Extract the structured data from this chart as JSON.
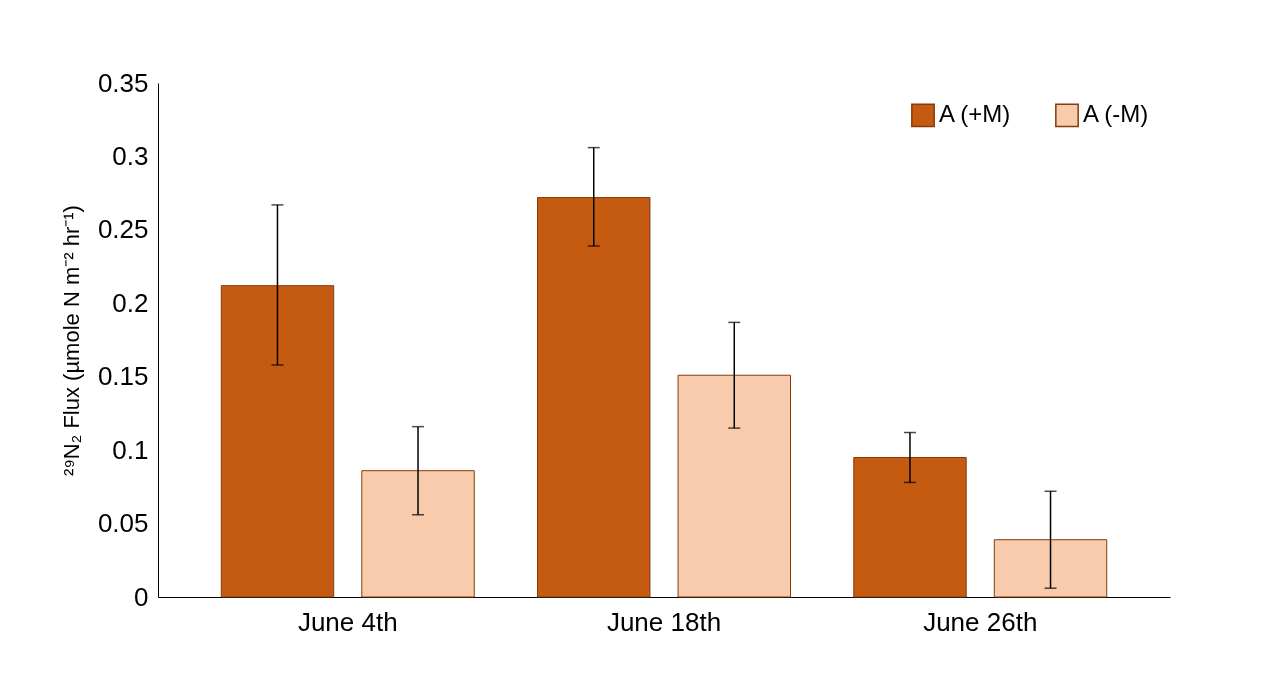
{
  "chart_data": {
    "type": "bar",
    "categories": [
      "June 4th",
      "June 18th",
      "June 26th"
    ],
    "ylabel": "²⁹N₂ Flux (µmole N   m⁻² hr⁻¹)",
    "series": [
      {
        "name": "A (+M)",
        "color": "#c55a11",
        "values": [
          0.212,
          0.272,
          0.095
        ],
        "errors": [
          [
            0.158,
            0.267
          ],
          [
            0.239,
            0.306
          ],
          [
            0.078,
            0.112
          ]
        ]
      },
      {
        "name": "A (-M)",
        "color": "#f8cbad",
        "values": [
          0.086,
          0.151,
          0.039
        ],
        "errors": [
          [
            0.056,
            0.116
          ],
          [
            0.115,
            0.187
          ],
          [
            0.006,
            0.072
          ]
        ]
      }
    ],
    "ylim": [
      0,
      0.35
    ],
    "yticks": [
      0,
      0.05,
      0.1,
      0.15,
      0.2,
      0.25,
      0.3,
      0.35
    ],
    "grid": false,
    "legend": "top right"
  }
}
